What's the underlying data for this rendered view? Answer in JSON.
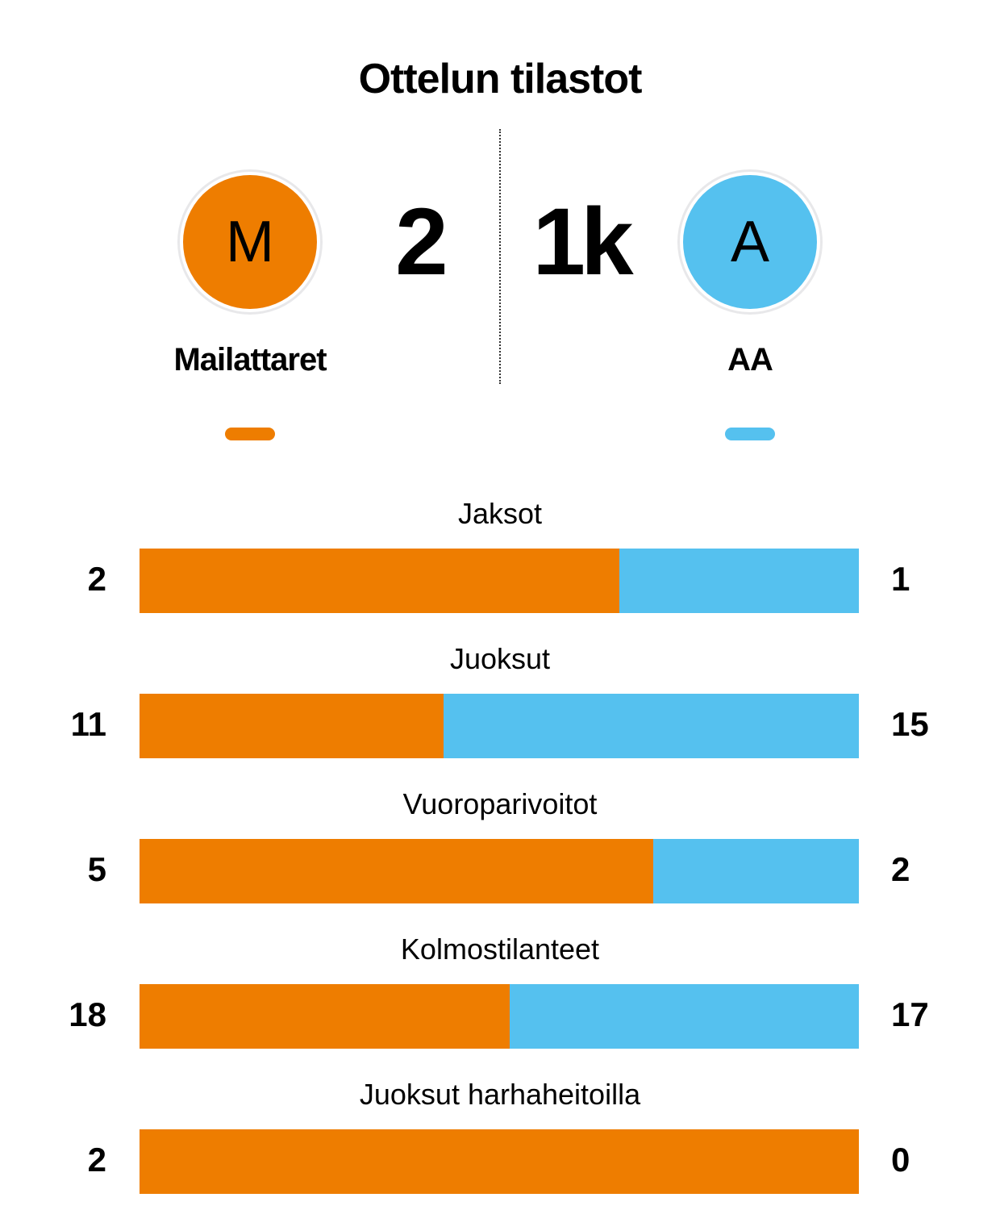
{
  "title": "Ottelun tilastot",
  "colors": {
    "home": "#EE7D00",
    "away": "#55C1EF"
  },
  "home": {
    "initial": "M",
    "name": "Mailattaret",
    "score": "2"
  },
  "away": {
    "initial": "A",
    "name": "AA",
    "score": "1k"
  },
  "stats": [
    {
      "label": "Jaksot",
      "home": 2,
      "away": 1
    },
    {
      "label": "Juoksut",
      "home": 11,
      "away": 15
    },
    {
      "label": "Vuoroparivoitot",
      "home": 5,
      "away": 2
    },
    {
      "label": "Kolmostilanteet",
      "home": 18,
      "away": 17
    },
    {
      "label": "Juoksut harhaheitoilla",
      "home": 2,
      "away": 0
    }
  ]
}
